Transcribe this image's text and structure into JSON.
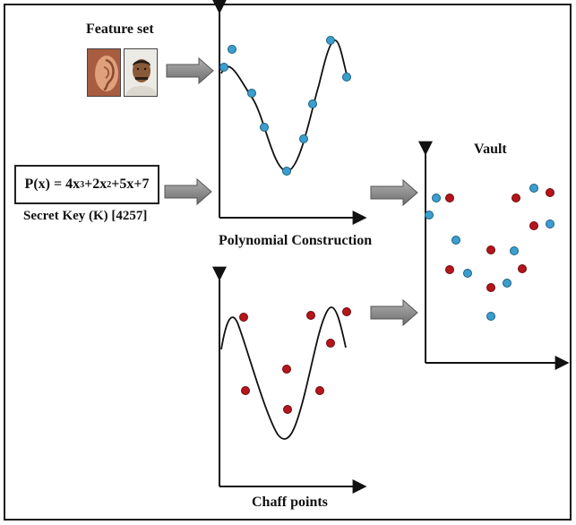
{
  "labels": {
    "feature_set": "Feature set",
    "polynomial_construction": "Polynomial Construction",
    "vault": "Vault",
    "chaff_points": "Chaff points",
    "secret_key": "Secret Key (K)  [4257]"
  },
  "equation": {
    "prefix": "P(x) = 4x",
    "exp1": "3",
    "mid": "+2x",
    "exp2": "2",
    "suffix": "+5x+7"
  },
  "images": {
    "ear": "ear-photo",
    "face": "face-photo"
  },
  "colors": {
    "genuine_point": "#3a9fcf",
    "chaff_point": "#b5151b",
    "arrow": "#8a8a8a",
    "axis": "#111111"
  }
}
